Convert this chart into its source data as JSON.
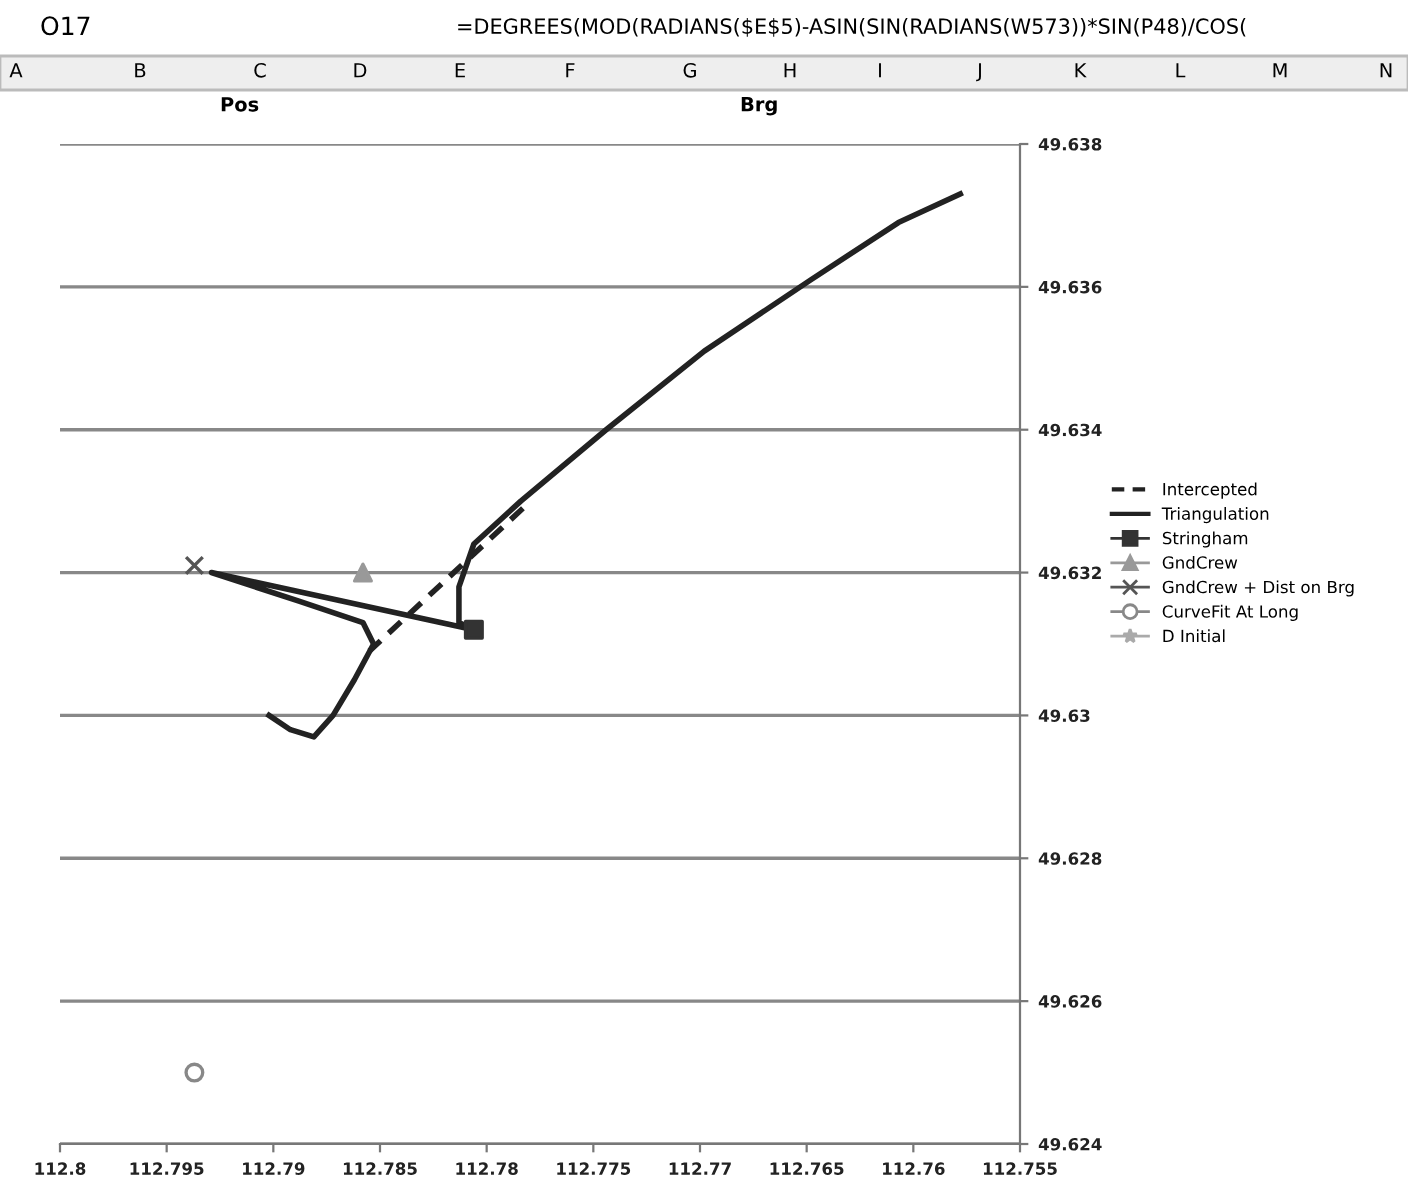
{
  "chart_data": {
    "type": "scatter",
    "annotations": [
      "O17",
      "=DEGREES(MOD(RADIANS($E$5)-ASIN(SIN(RADIANS(W573))*SIN(P48)/COS(",
      "A",
      "B",
      "C",
      "D",
      "E",
      "F",
      "G",
      "H",
      "I",
      "J",
      "K",
      "L",
      "M",
      "N",
      "Pos",
      "Brg"
    ],
    "xlim": [
      112.8,
      112.755
    ],
    "xticks": [
      112.8,
      112.795,
      112.79,
      112.785,
      112.78,
      112.775,
      112.77,
      112.765,
      112.76,
      112.755
    ],
    "ylim": [
      49.624,
      49.638
    ],
    "yticks": [
      49.624,
      49.626,
      49.628,
      49.63,
      49.632,
      49.634,
      49.636,
      49.638
    ],
    "grid": "y",
    "legend": "right",
    "series": [
      {
        "name": "Intercepted",
        "type": "line",
        "color": "#222222",
        "line_style": "dashed",
        "marker": "none",
        "x": [
          112.7783,
          112.7855
        ],
        "values": [
          49.6329,
          49.6309
        ]
      },
      {
        "name": "Triangulation",
        "type": "line",
        "color": "#222222",
        "line_style": "solid",
        "marker": "none",
        "x": [
          112.7578,
          112.7607,
          112.7648,
          112.7698,
          112.7744,
          112.7784,
          112.7806,
          112.7813,
          112.7813,
          112.7806,
          112.7929,
          112.7888,
          112.7858,
          112.7853,
          112.7862,
          112.7872,
          112.7881,
          112.7892,
          112.7902
        ],
        "values": [
          49.6373,
          49.6369,
          49.6361,
          49.6351,
          49.634,
          49.633,
          49.6324,
          49.6318,
          49.6313,
          49.6312,
          49.632,
          49.6316,
          49.6313,
          49.631,
          49.6305,
          49.63,
          49.6297,
          49.6298,
          49.63
        ]
      },
      {
        "name": "Stringham",
        "color": "#333333",
        "marker": "square",
        "x": [
          112.7806
        ],
        "values": [
          49.6312
        ]
      },
      {
        "name": "GndCrew",
        "color": "#999999",
        "marker": "triangle",
        "x": [
          112.7858
        ],
        "values": [
          49.632
        ]
      },
      {
        "name": "GndCrew + Dist on Brg",
        "color": "#555555",
        "marker": "cross",
        "x": [
          112.7937
        ],
        "values": [
          49.6321
        ]
      },
      {
        "name": "CurveFit At Long",
        "color": "#888888",
        "marker": "circle",
        "x": [
          112.7937
        ],
        "values": [
          49.625
        ]
      },
      {
        "name": "D Initial",
        "color": "#aaaaaa",
        "marker": "star"
      }
    ]
  }
}
